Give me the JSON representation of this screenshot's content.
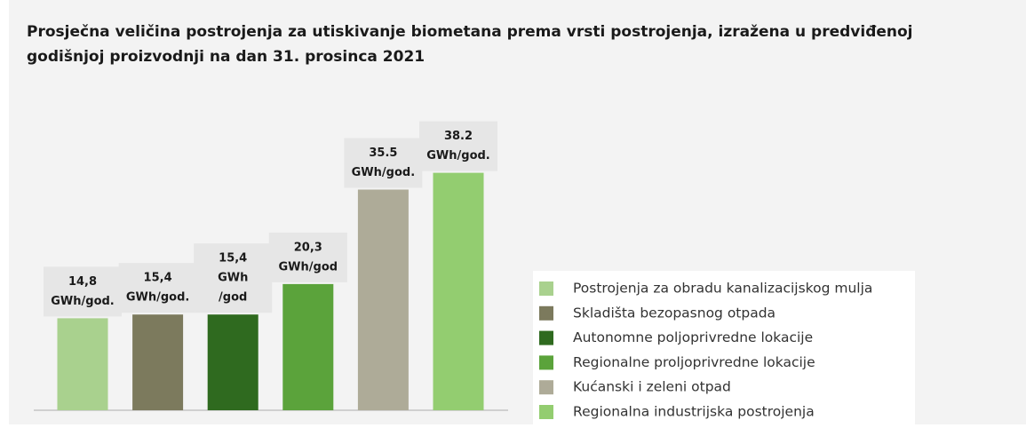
{
  "chart_data": {
    "type": "bar",
    "title": "Prosječna veličina postrojenja za utiskivanje biometana prema vrsti postrojenja, izražena u predviđenoj godišnjoj proizvodnji na dan 31. prosinca 2021",
    "categories": [
      "Postrojenja za obradu kanalizacijskog mulja",
      "Skladišta bezopasnog otpada",
      "Autonomne poljoprivredne lokacije",
      "Regionalne proljoprivredne lokacije",
      "Kućanski i zeleni otpad",
      "Regionalna industrijska postrojenja"
    ],
    "values": [
      14.8,
      15.4,
      15.4,
      20.3,
      35.5,
      38.2
    ],
    "value_labels": [
      [
        "14,8",
        "GWh/god."
      ],
      [
        "15,4",
        "GWh/god."
      ],
      [
        "15,4",
        "GWh",
        "/god"
      ],
      [
        "20,3",
        "GWh/god"
      ],
      [
        "35.5",
        "GWh/god."
      ],
      [
        "38.2",
        "GWh/god."
      ]
    ],
    "colors": [
      "#a9d18e",
      "#7c7a5d",
      "#2f6a1f",
      "#5ba33b",
      "#aeab98",
      "#93cd70"
    ],
    "ylim": [
      0,
      40
    ],
    "legend": "right"
  }
}
